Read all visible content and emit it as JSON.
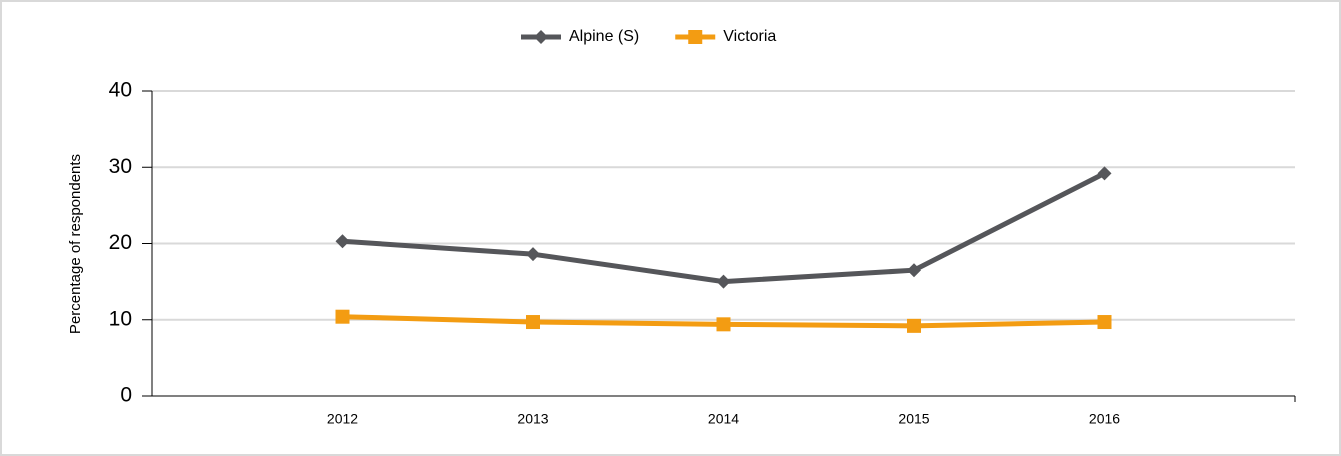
{
  "chart_data": {
    "type": "line",
    "y_label": "Percentage of respondents",
    "categories": [
      "2012",
      "2013",
      "2014",
      "2015",
      "2016"
    ],
    "series": [
      {
        "name": "Alpine (S)",
        "color": "#55565a",
        "marker": "diamond",
        "values": [
          20.3,
          18.6,
          15.0,
          16.5,
          29.2
        ]
      },
      {
        "name": "Victoria",
        "color": "#f39c12",
        "marker": "square",
        "values": [
          10.4,
          9.7,
          9.4,
          9.2,
          9.7
        ]
      }
    ],
    "ylim": [
      0,
      40
    ],
    "yticks": [
      0,
      10,
      20,
      30,
      40
    ],
    "grid": true,
    "legend": "top"
  }
}
